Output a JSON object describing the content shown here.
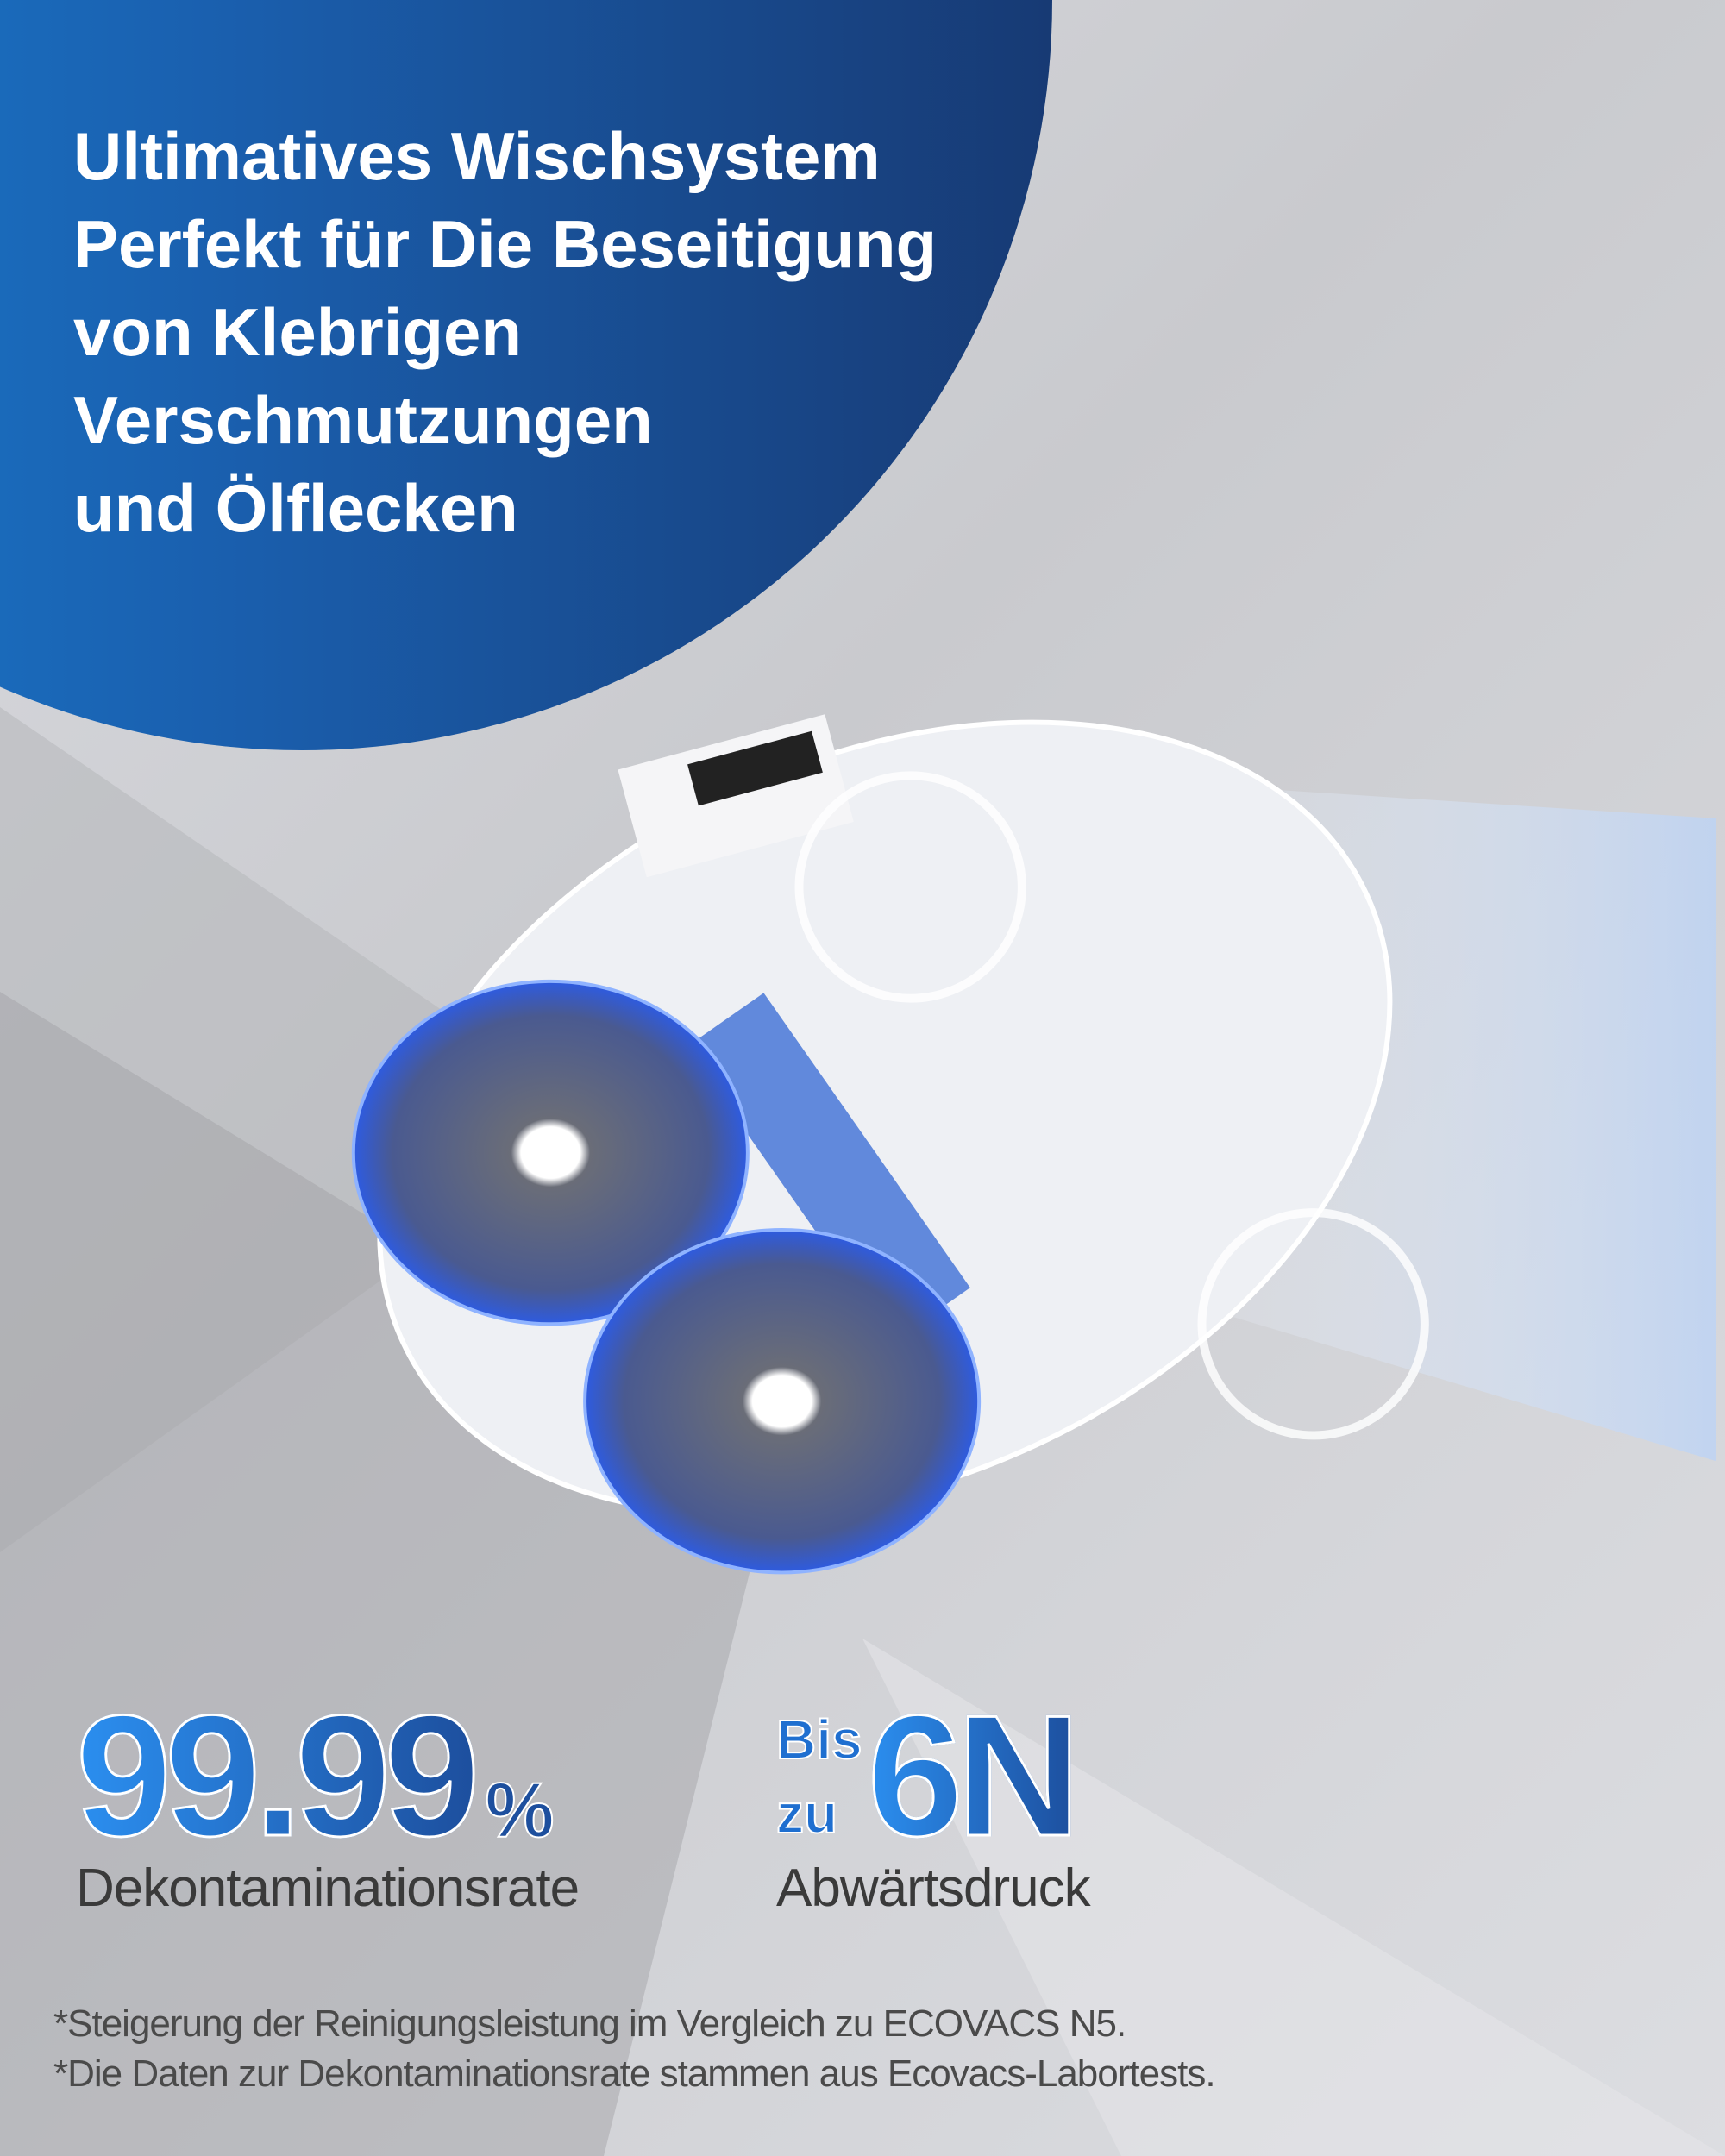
{
  "headline": {
    "lines": [
      "Ultimatives Wischsystem",
      "Perfekt für Die Beseitigung",
      "von Klebrigen",
      "Verschmutzungen",
      "und Ölflecken"
    ]
  },
  "stats": [
    {
      "value": "99.99",
      "unit": "%",
      "label": "Dekontaminationsrate"
    },
    {
      "prefix_top": "Bis",
      "prefix_bottom": "zu",
      "value": "6N",
      "label": "Abwärtsdruck"
    }
  ],
  "footnotes": [
    "*Steigerung der Reinigungsleistung im Vergleich zu ECOVACS N5.",
    "*Die Daten zur Dekontaminationsrate stammen aus Ecovacs-Labortests."
  ],
  "colors": {
    "brand_blue": "#1a5fae",
    "accent_blue": "#2b8ff0",
    "dark_blue": "#173a74"
  }
}
